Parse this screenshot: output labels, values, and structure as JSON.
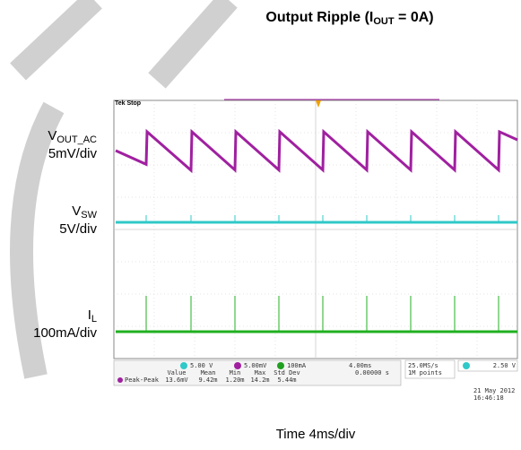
{
  "title": {
    "text": "Output Ripple (I",
    "sub": "OUT",
    "tail": " = 0A)"
  },
  "labels": [
    {
      "name": "V",
      "sub": "OUT_AC",
      "scale": "5mV/div"
    },
    {
      "name": "V",
      "sub": "SW",
      "scale": "5V/div"
    },
    {
      "name": "I",
      "sub": "L",
      "scale": "100mA/div"
    }
  ],
  "x_label": "Time 4ms/div",
  "scope": {
    "status": "Tek Stop",
    "channels": [
      "5.00 V",
      "5.00mV",
      "100mA"
    ],
    "timebase": "4.00ms",
    "trigger_pos": "0.00000 s",
    "sample_rate": "25.0MS/s",
    "record": "1M points",
    "trigger_level": "2.50 V",
    "measure_header": [
      "Value",
      "Mean",
      "Min",
      "Max",
      "Std Dev"
    ],
    "measure_row": [
      "Peak-Peak",
      "13.6mV",
      "9.42m",
      "1.20m",
      "14.2m",
      "5.44m"
    ],
    "date": "21 May 2012",
    "time": "16:46:18"
  }
}
